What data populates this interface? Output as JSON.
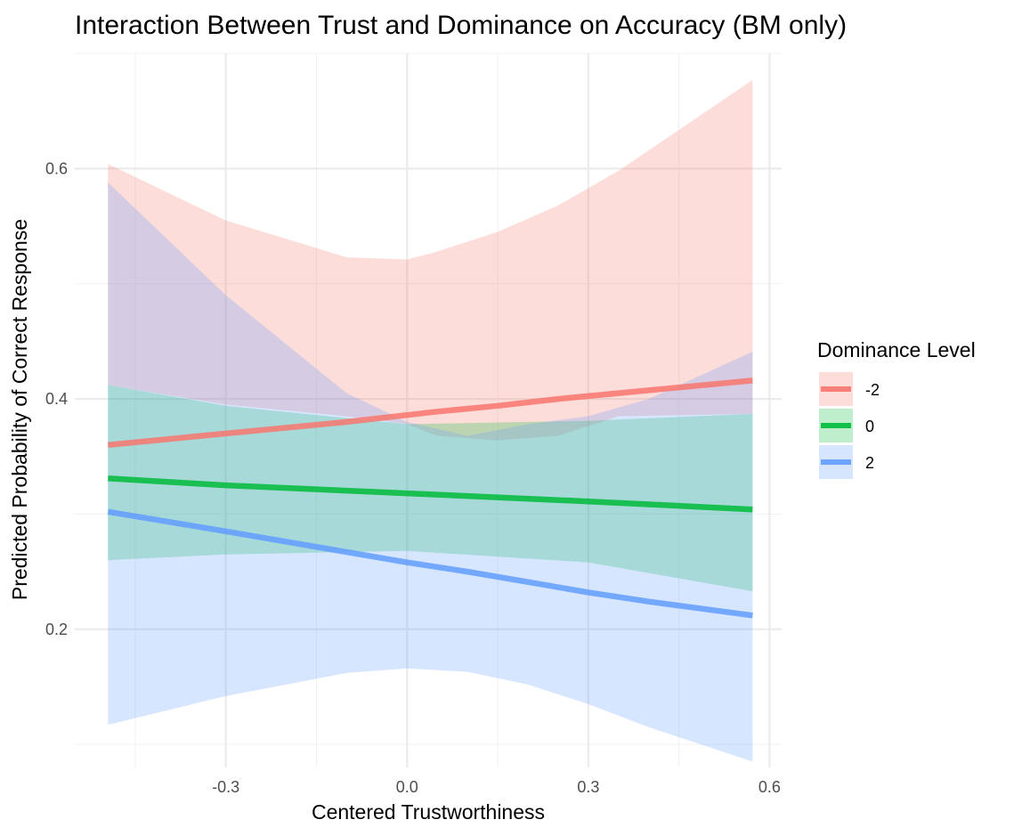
{
  "chart_data": {
    "type": "line",
    "title": "Interaction Between Trust and Dominance on Accuracy (BM only)",
    "xlabel": "Centered Trustworthiness",
    "ylabel": "Predicted Probability of Correct Response",
    "xlim": [
      -0.55,
      0.62
    ],
    "ylim": [
      0.08,
      0.7
    ],
    "x_ticks": [
      -0.3,
      0.0,
      0.3,
      0.6
    ],
    "x_tick_labels": [
      "-0.3",
      "0.0",
      "0.3",
      "0.6"
    ],
    "y_ticks": [
      0.2,
      0.4,
      0.6
    ],
    "y_tick_labels": [
      "0.2",
      "0.4",
      "0.6"
    ],
    "grid": true,
    "legend": {
      "title": "Dominance Level",
      "position": "right"
    },
    "series": [
      {
        "name": "-2",
        "color": "#F8766D",
        "x": [
          -0.495,
          -0.3,
          -0.1,
          0.0,
          0.05,
          0.15,
          0.25,
          0.35,
          0.572
        ],
        "y": [
          0.36,
          0.37,
          0.38,
          0.386,
          0.389,
          0.394,
          0.4,
          0.405,
          0.416
        ],
        "lower": [
          0.412,
          0.395,
          0.385,
          0.378,
          0.368,
          0.364,
          0.368,
          0.385,
          0.387
        ],
        "upper": [
          0.604,
          0.555,
          0.523,
          0.521,
          0.528,
          0.545,
          0.568,
          0.598,
          0.677
        ]
      },
      {
        "name": "0",
        "color": "#00BA38",
        "x": [
          -0.495,
          -0.3,
          0.0,
          0.3,
          0.572
        ],
        "y": [
          0.331,
          0.325,
          0.318,
          0.311,
          0.304
        ],
        "lower": [
          0.26,
          0.265,
          0.268,
          0.258,
          0.233
        ],
        "upper": [
          0.412,
          0.394,
          0.378,
          0.381,
          0.387
        ]
      },
      {
        "name": "2",
        "color": "#619CFF",
        "x": [
          -0.495,
          -0.3,
          -0.1,
          0.0,
          0.1,
          0.2,
          0.3,
          0.4,
          0.572
        ],
        "y": [
          0.302,
          0.285,
          0.267,
          0.258,
          0.25,
          0.241,
          0.232,
          0.224,
          0.212
        ],
        "lower": [
          0.117,
          0.142,
          0.162,
          0.166,
          0.163,
          0.152,
          0.135,
          0.115,
          0.085
        ],
        "upper": [
          0.588,
          0.49,
          0.405,
          0.38,
          0.368,
          0.378,
          0.385,
          0.4,
          0.441
        ]
      }
    ]
  }
}
